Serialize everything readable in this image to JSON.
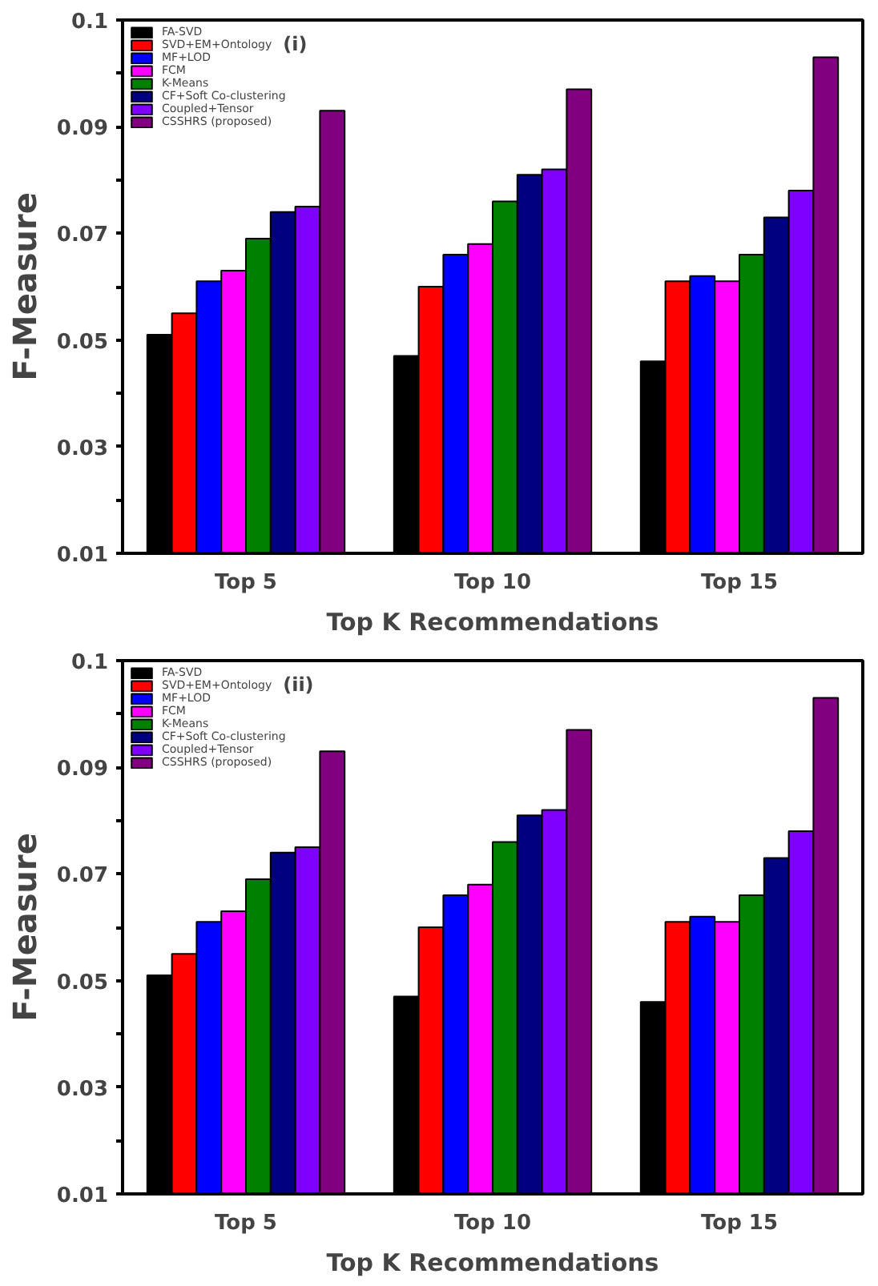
{
  "chart_data": [
    {
      "type": "bar",
      "categories": [
        "Top 5",
        "Top 10",
        "Top 15"
      ],
      "xlabel": "Top K Recommendations",
      "ylabel": "F-Measure",
      "annotations": [
        "(i)"
      ],
      "ylim": [
        0.01,
        0.11
      ],
      "yticks": [
        0.01,
        {
          "value": 0.02,
          "label": null
        },
        0.03,
        {
          "value": 0.04,
          "label": null
        },
        0.05,
        {
          "value": 0.06,
          "label": null
        },
        0.07,
        {
          "value": 0.08,
          "label": null
        },
        0.09,
        {
          "value": 0.1,
          "label": null
        },
        {
          "value": 0.11,
          "label": "0.1"
        }
      ],
      "grid": false,
      "legend": "top left",
      "series": [
        {
          "name": "FA-SVD",
          "color": "#000000",
          "values": [
            0.051,
            0.047,
            0.046
          ]
        },
        {
          "name": "SVD+EM+Ontology",
          "color": "#ff0000",
          "values": [
            0.055,
            0.06,
            0.061
          ]
        },
        {
          "name": "MF+LOD",
          "color": "#0000ff",
          "values": [
            0.061,
            0.066,
            0.062
          ]
        },
        {
          "name": "FCM",
          "color": "#ff00ff",
          "values": [
            0.063,
            0.068,
            0.061
          ]
        },
        {
          "name": "K-Means",
          "color": "#008000",
          "values": [
            0.069,
            0.076,
            0.066
          ]
        },
        {
          "name": "CF+Soft Co-clustering",
          "color": "#000080",
          "values": [
            0.074,
            0.081,
            0.073
          ]
        },
        {
          "name": "Coupled+Tensor",
          "color": "#8000ff",
          "values": [
            0.075,
            0.082,
            0.078
          ]
        },
        {
          "name": "CSSHRS (proposed)",
          "color": "#800080",
          "values": [
            0.093,
            0.097,
            0.103
          ]
        }
      ]
    },
    {
      "type": "bar",
      "categories": [
        "Top 5",
        "Top 10",
        "Top 15"
      ],
      "xlabel": "Top K Recommendations",
      "ylabel": "F-Measure",
      "annotations": [
        "(ii)"
      ],
      "ylim": [
        0.01,
        0.11
      ],
      "yticks": [
        0.01,
        {
          "value": 0.02,
          "label": null
        },
        0.03,
        {
          "value": 0.04,
          "label": null
        },
        0.05,
        {
          "value": 0.06,
          "label": null
        },
        0.07,
        {
          "value": 0.08,
          "label": null
        },
        0.09,
        {
          "value": 0.1,
          "label": null
        },
        {
          "value": 0.11,
          "label": "0.1"
        }
      ],
      "grid": false,
      "legend": "top left",
      "series": [
        {
          "name": "FA-SVD",
          "color": "#000000",
          "values": [
            0.051,
            0.047,
            0.046
          ]
        },
        {
          "name": "SVD+EM+Ontology",
          "color": "#ff0000",
          "values": [
            0.055,
            0.06,
            0.061
          ]
        },
        {
          "name": "MF+LOD",
          "color": "#0000ff",
          "values": [
            0.061,
            0.066,
            0.062
          ]
        },
        {
          "name": "FCM",
          "color": "#ff00ff",
          "values": [
            0.063,
            0.068,
            0.061
          ]
        },
        {
          "name": "K-Means",
          "color": "#008000",
          "values": [
            0.069,
            0.076,
            0.066
          ]
        },
        {
          "name": "CF+Soft Co-clustering",
          "color": "#000080",
          "values": [
            0.074,
            0.081,
            0.073
          ]
        },
        {
          "name": "Coupled+Tensor",
          "color": "#8000ff",
          "values": [
            0.075,
            0.082,
            0.078
          ]
        },
        {
          "name": "CSSHRS (proposed)",
          "color": "#800080",
          "values": [
            0.093,
            0.097,
            0.103
          ]
        }
      ]
    }
  ]
}
